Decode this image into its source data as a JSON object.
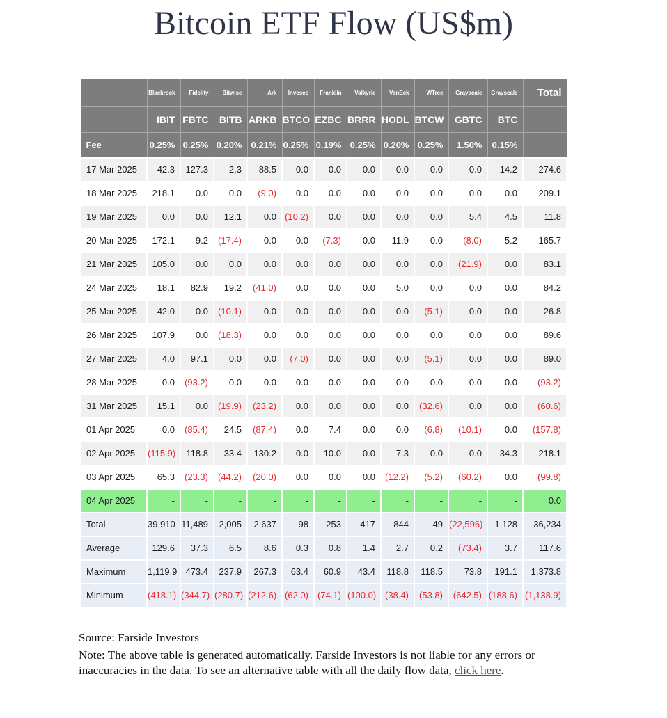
{
  "title": "Bitcoin ETF Flow (US$m)",
  "table": {
    "total_label": "Total",
    "providers": [
      "Blackrock",
      "Fidelity",
      "Bitwise",
      "Ark",
      "Invesco",
      "Franklin",
      "Valkyrie",
      "VanEck",
      "WTree",
      "Grayscale",
      "Grayscale"
    ],
    "tickers": [
      "IBIT",
      "FBTC",
      "BITB",
      "ARKB",
      "BTCO",
      "EZBC",
      "BRRR",
      "HODL",
      "BTCW",
      "GBTC",
      "BTC"
    ],
    "fee_label": "Fee",
    "fees": [
      "0.25%",
      "0.25%",
      "0.20%",
      "0.21%",
      "0.25%",
      "0.19%",
      "0.25%",
      "0.20%",
      "0.25%",
      "1.50%",
      "0.15%"
    ],
    "rows": [
      {
        "date": "17 Mar 2025",
        "values": [
          "42.3",
          "127.3",
          "2.3",
          "88.5",
          "0.0",
          "0.0",
          "0.0",
          "0.0",
          "0.0",
          "0.0",
          "14.2"
        ],
        "total": "274.6",
        "highlight": false
      },
      {
        "date": "18 Mar 2025",
        "values": [
          "218.1",
          "0.0",
          "0.0",
          "(9.0)",
          "0.0",
          "0.0",
          "0.0",
          "0.0",
          "0.0",
          "0.0",
          "0.0"
        ],
        "total": "209.1",
        "highlight": false
      },
      {
        "date": "19 Mar 2025",
        "values": [
          "0.0",
          "0.0",
          "12.1",
          "0.0",
          "(10.2)",
          "0.0",
          "0.0",
          "0.0",
          "0.0",
          "5.4",
          "4.5"
        ],
        "total": "11.8",
        "highlight": false
      },
      {
        "date": "20 Mar 2025",
        "values": [
          "172.1",
          "9.2",
          "(17.4)",
          "0.0",
          "0.0",
          "(7.3)",
          "0.0",
          "11.9",
          "0.0",
          "(8.0)",
          "5.2"
        ],
        "total": "165.7",
        "highlight": false
      },
      {
        "date": "21 Mar 2025",
        "values": [
          "105.0",
          "0.0",
          "0.0",
          "0.0",
          "0.0",
          "0.0",
          "0.0",
          "0.0",
          "0.0",
          "(21.9)",
          "0.0"
        ],
        "total": "83.1",
        "highlight": false
      },
      {
        "date": "24 Mar 2025",
        "values": [
          "18.1",
          "82.9",
          "19.2",
          "(41.0)",
          "0.0",
          "0.0",
          "0.0",
          "5.0",
          "0.0",
          "0.0",
          "0.0"
        ],
        "total": "84.2",
        "highlight": false
      },
      {
        "date": "25 Mar 2025",
        "values": [
          "42.0",
          "0.0",
          "(10.1)",
          "0.0",
          "0.0",
          "0.0",
          "0.0",
          "0.0",
          "(5.1)",
          "0.0",
          "0.0"
        ],
        "total": "26.8",
        "highlight": false
      },
      {
        "date": "26 Mar 2025",
        "values": [
          "107.9",
          "0.0",
          "(18.3)",
          "0.0",
          "0.0",
          "0.0",
          "0.0",
          "0.0",
          "0.0",
          "0.0",
          "0.0"
        ],
        "total": "89.6",
        "highlight": false
      },
      {
        "date": "27 Mar 2025",
        "values": [
          "4.0",
          "97.1",
          "0.0",
          "0.0",
          "(7.0)",
          "0.0",
          "0.0",
          "0.0",
          "(5.1)",
          "0.0",
          "0.0"
        ],
        "total": "89.0",
        "highlight": false
      },
      {
        "date": "28 Mar 2025",
        "values": [
          "0.0",
          "(93.2)",
          "0.0",
          "0.0",
          "0.0",
          "0.0",
          "0.0",
          "0.0",
          "0.0",
          "0.0",
          "0.0"
        ],
        "total": "(93.2)",
        "highlight": false
      },
      {
        "date": "31 Mar 2025",
        "values": [
          "15.1",
          "0.0",
          "(19.9)",
          "(23.2)",
          "0.0",
          "0.0",
          "0.0",
          "0.0",
          "(32.6)",
          "0.0",
          "0.0"
        ],
        "total": "(60.6)",
        "highlight": false
      },
      {
        "date": "01 Apr 2025",
        "values": [
          "0.0",
          "(85.4)",
          "24.5",
          "(87.4)",
          "0.0",
          "7.4",
          "0.0",
          "0.0",
          "(6.8)",
          "(10.1)",
          "0.0"
        ],
        "total": "(157.8)",
        "highlight": false
      },
      {
        "date": "02 Apr 2025",
        "values": [
          "(115.9)",
          "118.8",
          "33.4",
          "130.2",
          "0.0",
          "10.0",
          "0.0",
          "7.3",
          "0.0",
          "0.0",
          "34.3"
        ],
        "total": "218.1",
        "highlight": false
      },
      {
        "date": "03 Apr 2025",
        "values": [
          "65.3",
          "(23.3)",
          "(44.2)",
          "(20.0)",
          "0.0",
          "0.0",
          "0.0",
          "(12.2)",
          "(5.2)",
          "(60.2)",
          "0.0"
        ],
        "total": "(99.8)",
        "highlight": false
      },
      {
        "date": "04 Apr 2025",
        "values": [
          "-",
          "-",
          "-",
          "-",
          "-",
          "-",
          "-",
          "-",
          "-",
          "-",
          "-"
        ],
        "total": "0.0",
        "highlight": true
      }
    ],
    "summary": [
      {
        "label": "Total",
        "values": [
          "39,910",
          "11,489",
          "2,005",
          "2,637",
          "98",
          "253",
          "417",
          "844",
          "49",
          "(22,596)",
          "1,128"
        ],
        "total": "36,234"
      },
      {
        "label": "Average",
        "values": [
          "129.6",
          "37.3",
          "6.5",
          "8.6",
          "0.3",
          "0.8",
          "1.4",
          "2.7",
          "0.2",
          "(73.4)",
          "3.7"
        ],
        "total": "117.6"
      },
      {
        "label": "Maximum",
        "values": [
          "1,119.9",
          "473.4",
          "237.9",
          "267.3",
          "63.4",
          "60.9",
          "43.4",
          "118.8",
          "118.5",
          "73.8",
          "191.1"
        ],
        "total": "1,373.8"
      },
      {
        "label": "Minimum",
        "values": [
          "(418.1)",
          "(344.7)",
          "(280.7)",
          "(212.6)",
          "(62.0)",
          "(74.1)",
          "(100.0)",
          "(38.4)",
          "(53.8)",
          "(642.5)",
          "(188.6)"
        ],
        "total": "(1,138.9)"
      }
    ]
  },
  "footer": {
    "source": "Source: Farside Investors",
    "note_before": "Note: The above table is generated automatically. Farside Investors is not liable for any errors or inaccuracies in the data. To see an alternative table with all the daily flow data, ",
    "link_text": "click here",
    "note_after": "."
  },
  "colors": {
    "title_text": "#2f3449",
    "header_bg": "#7d7d7d",
    "header_text": "#ffffff",
    "stripe_bg": "#f0f0f0",
    "highlight_bg": "#90ee90",
    "summary_bg": "#e9edf6",
    "negative_text": "#e8262d",
    "link_text": "#465564"
  }
}
